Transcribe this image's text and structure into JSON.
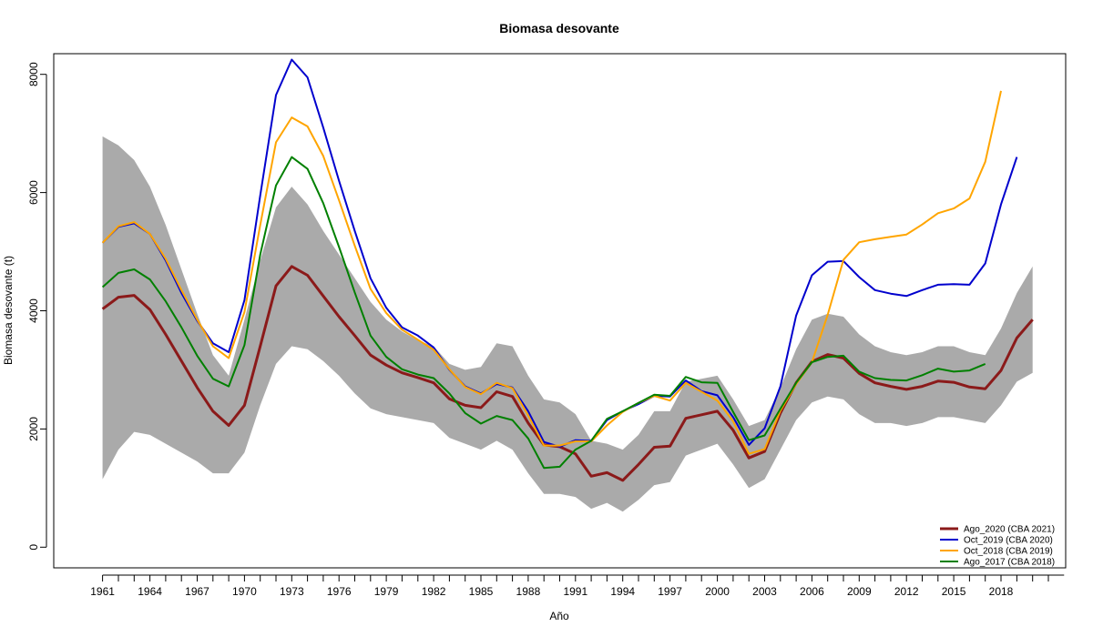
{
  "chart_data": {
    "type": "line",
    "title": "Biomasa desovante",
    "xlabel": "Año",
    "ylabel": "Biomasa desovante (t)",
    "xlim": [
      1957.9,
      2022.1
    ],
    "ylim": [
      -350,
      8350
    ],
    "x_ticks": [
      1961,
      1964,
      1967,
      1970,
      1973,
      1976,
      1979,
      1982,
      1985,
      1988,
      1991,
      1994,
      1997,
      2000,
      2003,
      2006,
      2009,
      2012,
      2015,
      2018
    ],
    "y_ticks": [
      0,
      2000,
      4000,
      6000,
      8000
    ],
    "grid": false,
    "legend_position": "bottom-right",
    "band": {
      "color": "#aaaaaa",
      "x_start": 1961,
      "upper": [
        6950,
        6800,
        6550,
        6100,
        5450,
        4700,
        3950,
        3250,
        2900,
        3850,
        4850,
        5750,
        6100,
        5800,
        5350,
        4950,
        4550,
        4150,
        3850,
        3650,
        3500,
        3400,
        3100,
        3000,
        3050,
        3450,
        3400,
        2900,
        2500,
        2450,
        2250,
        1800,
        1750,
        1650,
        1900,
        2300,
        2300,
        2800,
        2850,
        2900,
        2500,
        2050,
        2150,
        2700,
        3350,
        3850,
        3950,
        3900,
        3600,
        3400,
        3300,
        3250,
        3300,
        3400,
        3400,
        3300,
        3250,
        3700,
        4300,
        4750
      ],
      "lower": [
        1150,
        1650,
        1950,
        1900,
        1750,
        1600,
        1450,
        1250,
        1250,
        1600,
        2400,
        3100,
        3400,
        3350,
        3150,
        2900,
        2600,
        2350,
        2250,
        2200,
        2150,
        2100,
        1850,
        1750,
        1650,
        1800,
        1650,
        1250,
        900,
        900,
        850,
        650,
        750,
        600,
        800,
        1050,
        1100,
        1550,
        1650,
        1750,
        1400,
        1000,
        1150,
        1650,
        2150,
        2450,
        2550,
        2500,
        2250,
        2100,
        2100,
        2050,
        2100,
        2200,
        2200,
        2150,
        2100,
        2400,
        2800,
        2950
      ]
    },
    "series": [
      {
        "name": "Ago_2020 (CBA 2021)",
        "color": "#8b1a1a",
        "width": 3,
        "x_start": 1961,
        "values": [
          4030,
          4230,
          4260,
          4020,
          3600,
          3150,
          2700,
          2300,
          2060,
          2400,
          3400,
          4420,
          4750,
          4600,
          4250,
          3900,
          3580,
          3250,
          3080,
          2950,
          2870,
          2780,
          2510,
          2400,
          2360,
          2630,
          2550,
          2100,
          1730,
          1700,
          1580,
          1200,
          1260,
          1130,
          1400,
          1690,
          1710,
          2180,
          2240,
          2300,
          1980,
          1510,
          1620,
          2270,
          2780,
          3140,
          3260,
          3200,
          2940,
          2780,
          2720,
          2670,
          2720,
          2810,
          2790,
          2710,
          2680,
          2990,
          3540,
          3850
        ]
      },
      {
        "name": "Oct_2019 (CBA 2020)",
        "color": "#0000cd",
        "width": 2,
        "x_start": 1961,
        "values": [
          5150,
          5420,
          5480,
          5300,
          4850,
          4300,
          3830,
          3450,
          3300,
          4180,
          5950,
          7650,
          8250,
          7950,
          7100,
          6200,
          5350,
          4550,
          4050,
          3720,
          3580,
          3380,
          3000,
          2720,
          2600,
          2760,
          2700,
          2300,
          1780,
          1700,
          1810,
          1800,
          2150,
          2300,
          2420,
          2560,
          2550,
          2820,
          2640,
          2570,
          2200,
          1730,
          2010,
          2720,
          3920,
          4600,
          4830,
          4840,
          4570,
          4350,
          4290,
          4250,
          4350,
          4440,
          4450,
          4440,
          4800,
          5800,
          6600,
          null
        ]
      },
      {
        "name": "Oct_2018 (CBA 2019)",
        "color": "#ffa500",
        "width": 2,
        "x_start": 1961,
        "values": [
          5150,
          5430,
          5500,
          5300,
          4880,
          4350,
          3850,
          3400,
          3200,
          3980,
          5450,
          6850,
          7270,
          7120,
          6620,
          5870,
          5100,
          4370,
          3960,
          3680,
          3510,
          3340,
          3010,
          2710,
          2590,
          2780,
          2690,
          2230,
          1720,
          1720,
          1790,
          1790,
          2060,
          2290,
          2440,
          2560,
          2480,
          2780,
          2630,
          2480,
          2130,
          1580,
          1660,
          2310,
          2760,
          3130,
          3930,
          4860,
          5160,
          5210,
          5250,
          5290,
          5460,
          5650,
          5730,
          5900,
          6520,
          7720,
          null,
          null
        ]
      },
      {
        "name": "Ago_2017 (CBA 2018)",
        "color": "#008000",
        "width": 2,
        "x_start": 1961,
        "values": [
          4400,
          4640,
          4700,
          4530,
          4160,
          3720,
          3240,
          2850,
          2720,
          3420,
          4950,
          6120,
          6600,
          6400,
          5820,
          5080,
          4310,
          3580,
          3220,
          3010,
          2920,
          2860,
          2600,
          2270,
          2090,
          2220,
          2150,
          1840,
          1340,
          1360,
          1650,
          1800,
          2170,
          2300,
          2440,
          2580,
          2560,
          2880,
          2790,
          2780,
          2290,
          1810,
          1890,
          2340,
          2780,
          3130,
          3220,
          3240,
          2970,
          2860,
          2830,
          2820,
          2910,
          3020,
          2970,
          2990,
          3100,
          null,
          null,
          null
        ]
      }
    ]
  }
}
